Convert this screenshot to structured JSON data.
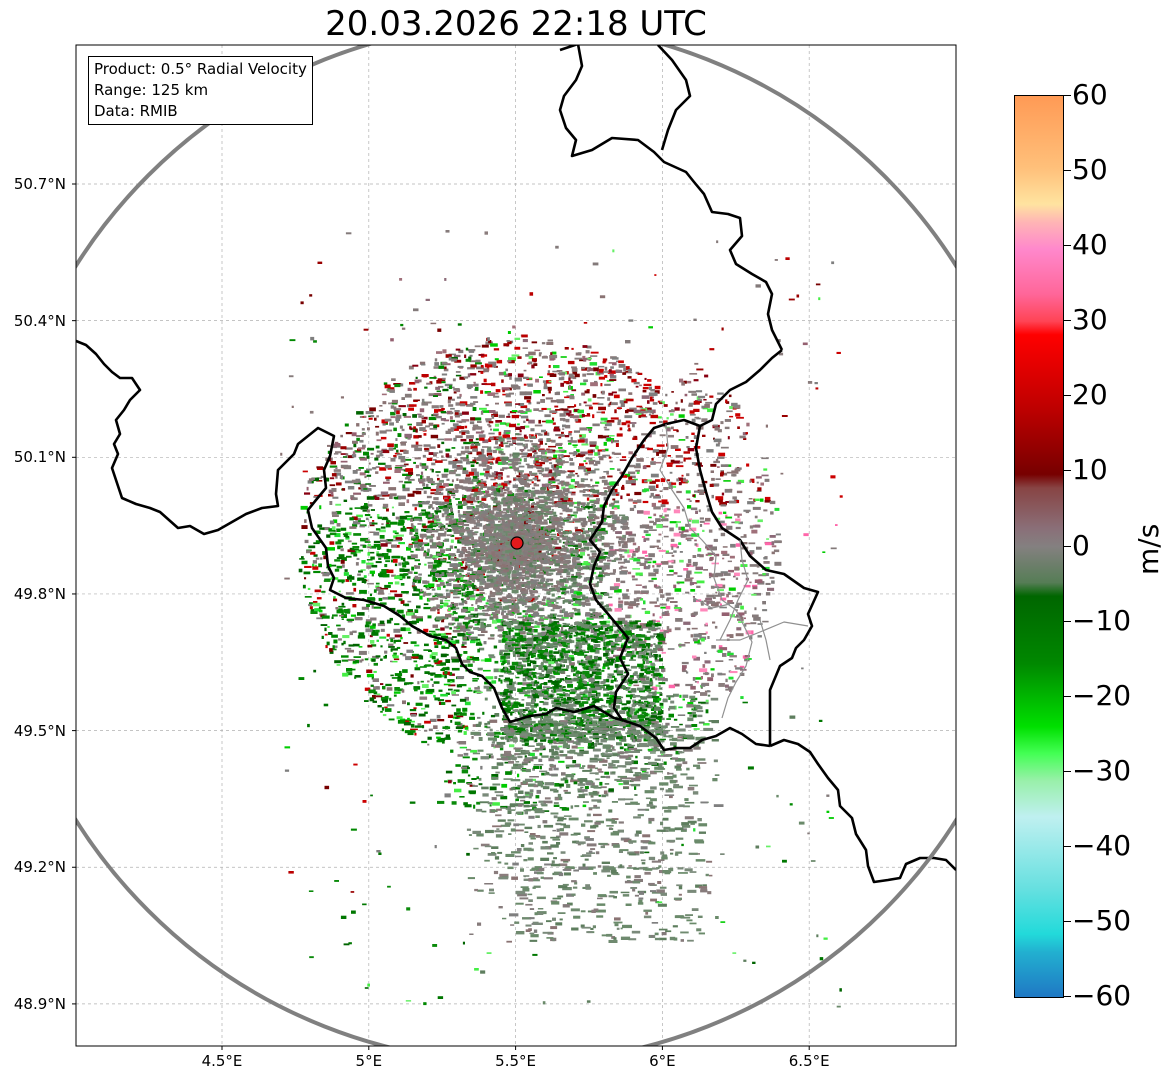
{
  "title": "20.03.2026 22:18 UTC",
  "info_box": {
    "product": "Product: 0.5° Radial Velocity",
    "range": "Range: 125 km",
    "data": "Data: RMIB"
  },
  "axes": {
    "lat_ticks": [
      "50.7°N",
      "50.4°N",
      "50.1°N",
      "49.8°N",
      "49.5°N",
      "49.2°N",
      "48.9°N"
    ],
    "lon_ticks": [
      "4.5°E",
      "5°E",
      "5.5°E",
      "6°E",
      "6.5°E"
    ],
    "lat_values": [
      50.7,
      50.4,
      50.1,
      49.8,
      49.5,
      49.2,
      48.9
    ],
    "lon_values": [
      4.5,
      5.0,
      5.5,
      6.0,
      6.5
    ],
    "lat_range": [
      48.8,
      50.99
    ],
    "lon_range": [
      4.0,
      7.0
    ]
  },
  "radar": {
    "site_lat": 49.914,
    "site_lon": 5.506,
    "range_km": 125,
    "site_color": "#e31a1c",
    "range_ring_color": "#808080"
  },
  "colorbar": {
    "unit": "m/s",
    "min": -60,
    "max": 60,
    "ticks": [
      "60",
      "50",
      "40",
      "30",
      "20",
      "10",
      "0",
      "−10",
      "−20",
      "−30",
      "−40",
      "−50",
      "−60"
    ],
    "tick_values": [
      60,
      50,
      40,
      30,
      20,
      10,
      0,
      -10,
      -20,
      -30,
      -40,
      -50,
      -60
    ]
  },
  "colors": {
    "border": "#000000",
    "gridline": "#b0b0b0",
    "light_border": "#909090"
  }
}
